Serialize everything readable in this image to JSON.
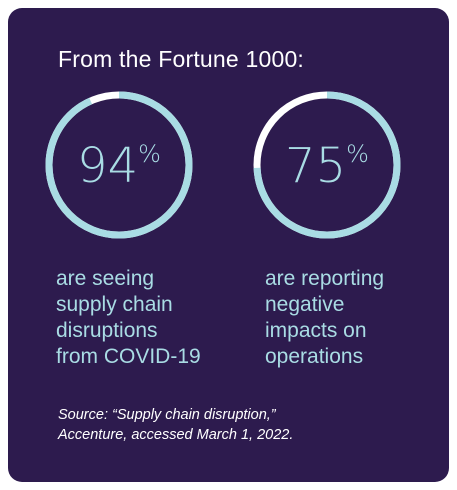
{
  "colors": {
    "background": "#2d1b4e",
    "ring_value": "#a9dce4",
    "ring_remainder": "#ffffff",
    "text_primary": "#ffffff",
    "text_accent": "#a9dce4"
  },
  "headline": "From the Fortune 1000:",
  "chart_data": [
    {
      "type": "pie",
      "variant": "donut",
      "value": 94,
      "remainder": 6,
      "label": "94",
      "unit": "%",
      "caption": "are seeing\nsupply chain\ndisruptions\nfrom COVID-19"
    },
    {
      "type": "pie",
      "variant": "donut",
      "value": 75,
      "remainder": 25,
      "label": "75",
      "unit": "%",
      "caption": "are reporting\nnegative\nimpacts on\noperations"
    }
  ],
  "source": "Source: “Supply chain disruption,”\nAccenture, accessed March 1, 2022."
}
